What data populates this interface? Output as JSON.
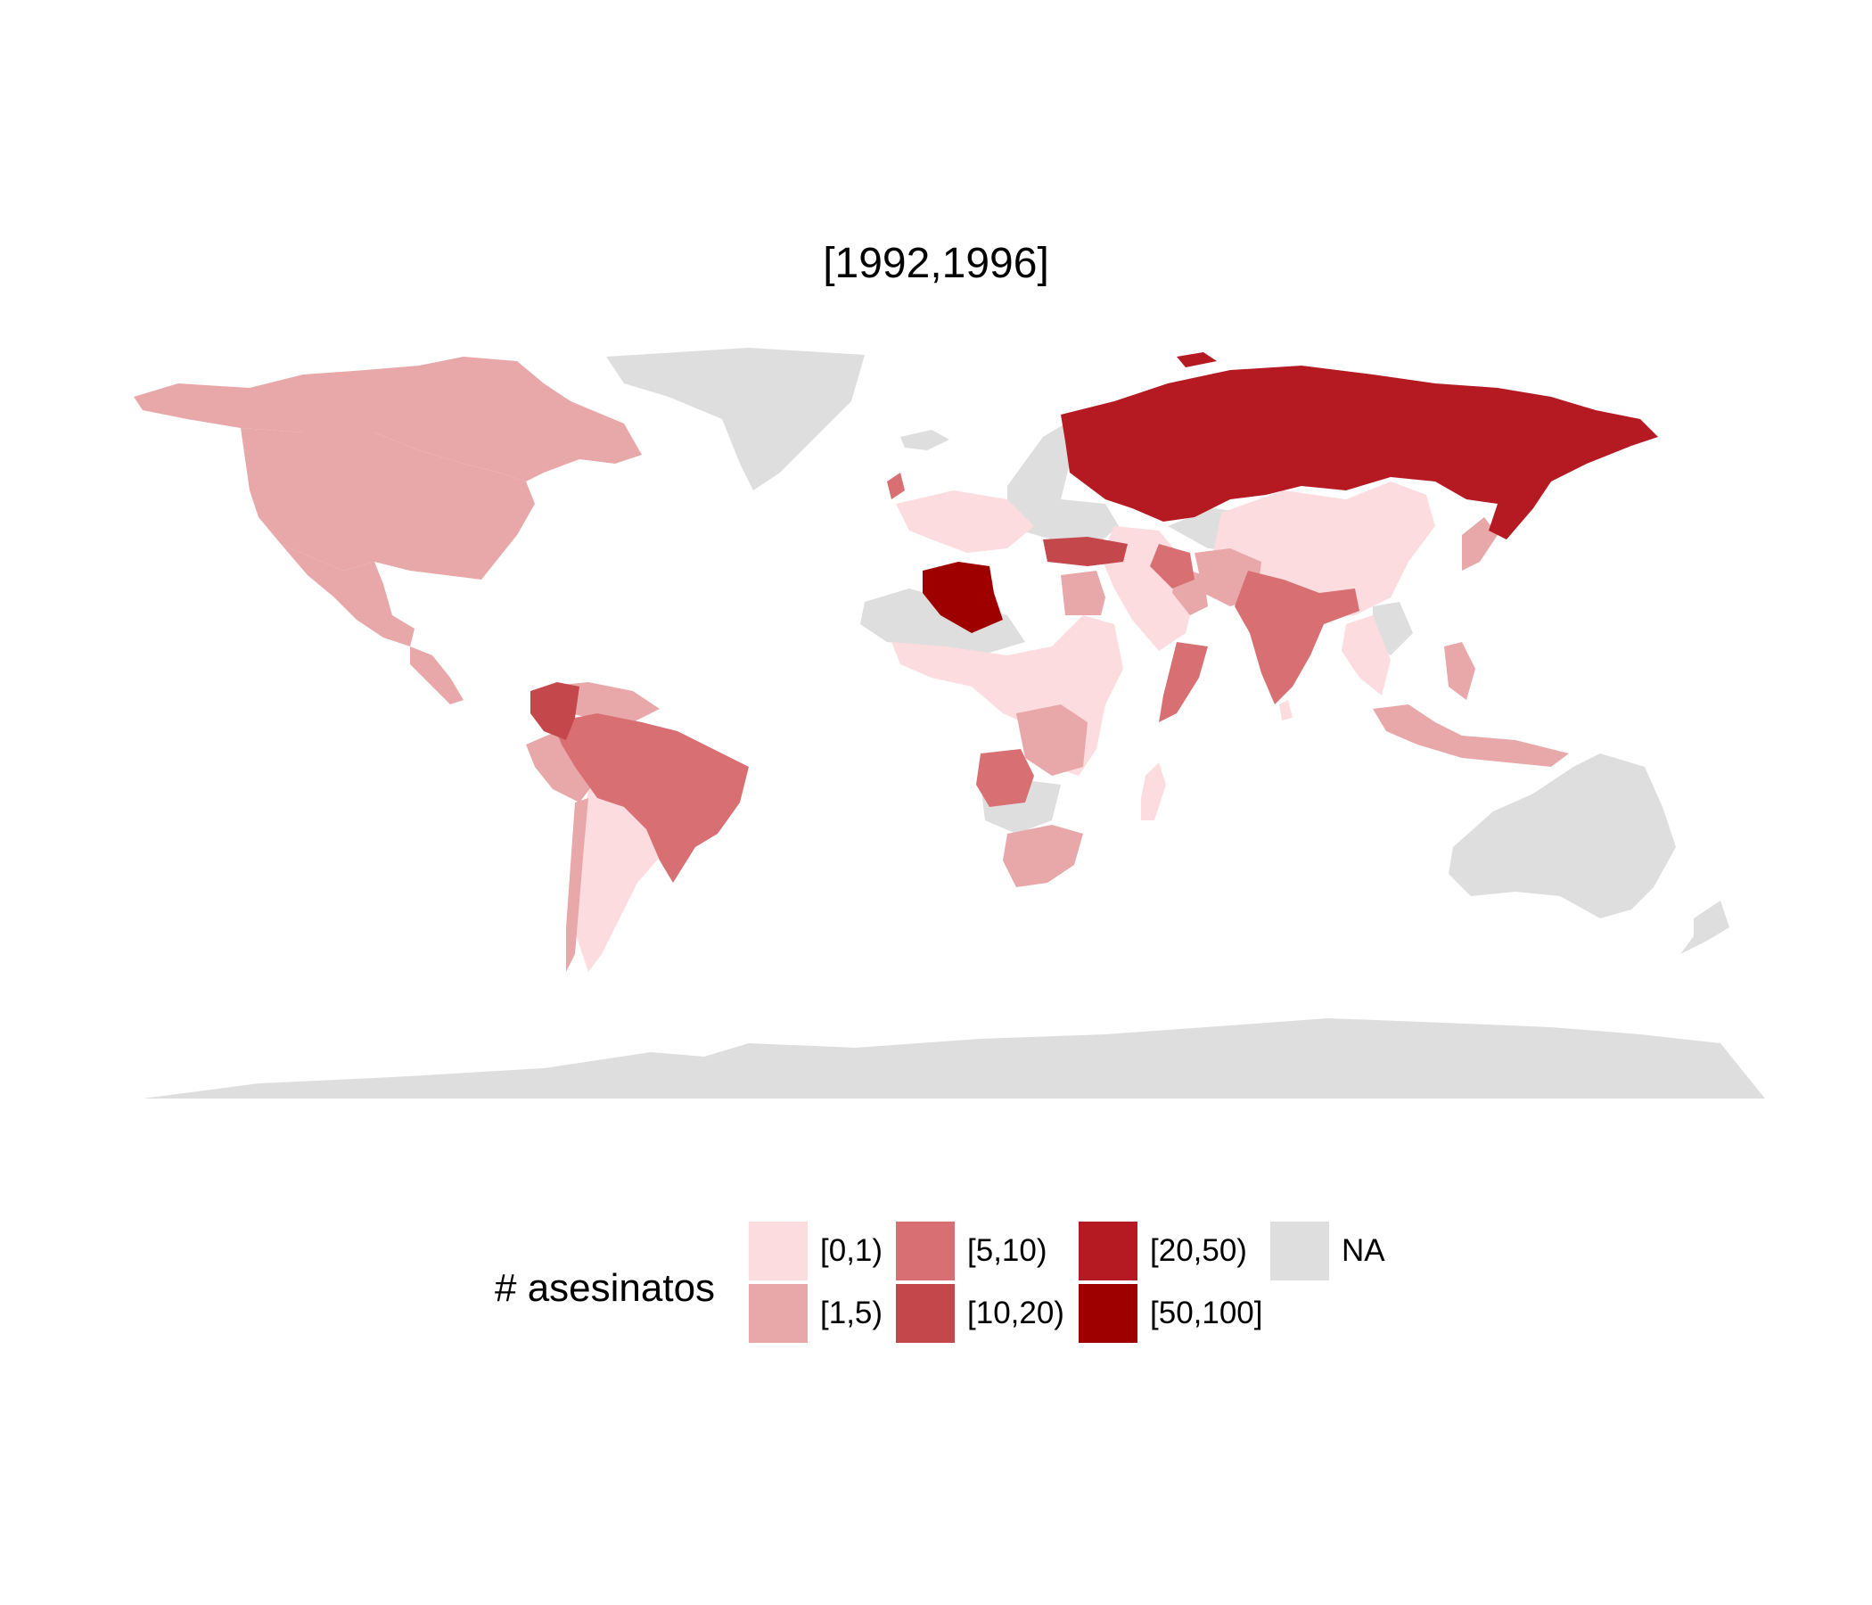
{
  "title": "[1992,1996]",
  "legend": {
    "title": "# asesinatos",
    "items": [
      {
        "label": "[0,1)",
        "color": "#fddcdf"
      },
      {
        "label": "[1,5)",
        "color": "#e8a8a9"
      },
      {
        "label": "[5,10)",
        "color": "#d87073"
      },
      {
        "label": "[10,20)",
        "color": "#c4474b"
      },
      {
        "label": "[20,50)",
        "color": "#b51a23"
      },
      {
        "label": "[50,100]",
        "color": "#9e0000"
      },
      {
        "label": "NA",
        "color": "#dedede"
      }
    ]
  },
  "map_data": {
    "type": "choropleth",
    "regions": [
      {
        "name": "Canada",
        "bin": "[1,5)"
      },
      {
        "name": "United States",
        "bin": "[1,5)"
      },
      {
        "name": "Mexico",
        "bin": "[1,5)"
      },
      {
        "name": "Greenland",
        "bin": "NA"
      },
      {
        "name": "Colombia",
        "bin": "[10,20)"
      },
      {
        "name": "Venezuela",
        "bin": "[1,5)"
      },
      {
        "name": "Peru",
        "bin": "[1,5)"
      },
      {
        "name": "Brazil",
        "bin": "[5,10)"
      },
      {
        "name": "Argentina",
        "bin": "[0,1)"
      },
      {
        "name": "Chile",
        "bin": "[1,5)"
      },
      {
        "name": "Algeria",
        "bin": "[50,100]"
      },
      {
        "name": "Egypt",
        "bin": "[1,5)"
      },
      {
        "name": "Somalia",
        "bin": "[5,10)"
      },
      {
        "name": "Angola",
        "bin": "[5,10)"
      },
      {
        "name": "South Africa",
        "bin": "[1,5)"
      },
      {
        "name": "Russia",
        "bin": "[20,50)"
      },
      {
        "name": "Turkey",
        "bin": "[10,20)"
      },
      {
        "name": "India",
        "bin": "[5,10)"
      },
      {
        "name": "China",
        "bin": "[0,1)"
      },
      {
        "name": "Indonesia",
        "bin": "[1,5)"
      },
      {
        "name": "Philippines",
        "bin": "[1,5)"
      },
      {
        "name": "Australia",
        "bin": "NA"
      },
      {
        "name": "Antarctica",
        "bin": "NA"
      }
    ]
  }
}
